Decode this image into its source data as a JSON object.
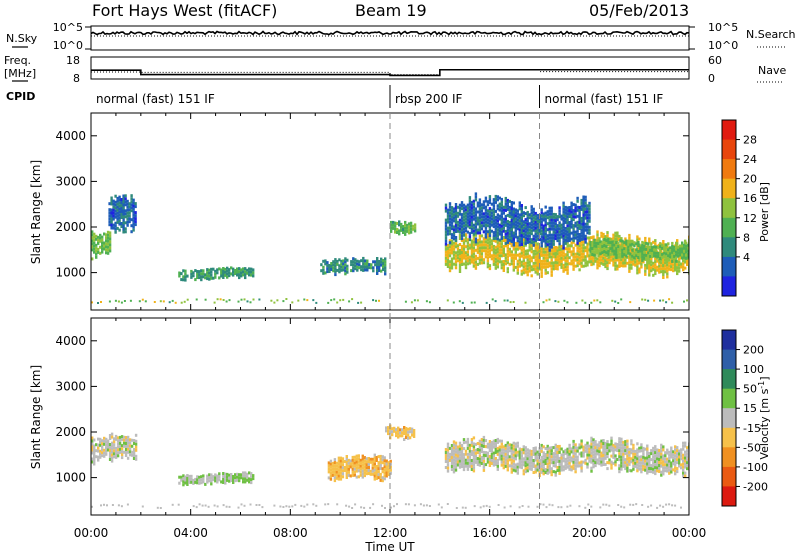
{
  "header": {
    "station": "Fort Hays West (fitACF)",
    "beam": "Beam 19",
    "date": "05/Feb/2013"
  },
  "noise_panel": {
    "left_label": "N.Sky",
    "right_label": "N.Search",
    "left_ticks": [
      "10^5",
      "10^0"
    ],
    "right_ticks": [
      "10^5",
      "10^0"
    ]
  },
  "freq_panel": {
    "left_label_line1": "Freq.",
    "left_label_line2": "[MHz]",
    "right_label": "Nave",
    "left_ticks": [
      "18",
      "8"
    ],
    "right_ticks": [
      "60",
      "0"
    ],
    "freq_steps": [
      {
        "t": 0,
        "f": 12.0
      },
      {
        "t": 2.0,
        "f": 10.0
      },
      {
        "t": 12.0,
        "f": 9.6
      },
      {
        "t": 14.0,
        "f": 12.2
      },
      {
        "t": 24.0,
        "f": 12.2
      }
    ],
    "nave_steps": [
      {
        "t": 0,
        "nave": 19
      },
      {
        "t": 2.0,
        "nave": 18
      },
      {
        "t": 12.0,
        "nave": 12
      },
      {
        "t": 14.0,
        "nave": 26
      },
      {
        "t": 18.0,
        "nave": 20
      },
      {
        "t": 24.0,
        "nave": 20
      }
    ]
  },
  "cpid": {
    "label": "CPID",
    "modes": [
      {
        "start": 0,
        "end": 12,
        "text": "normal (fast) 151 IF"
      },
      {
        "start": 12,
        "end": 18,
        "text": "rbsp 200 IF"
      },
      {
        "start": 18,
        "end": 24,
        "text": "normal (fast) 151 IF"
      }
    ]
  },
  "xaxis": {
    "label": "Time UT",
    "ticks": [
      "00:00",
      "04:00",
      "08:00",
      "12:00",
      "16:00",
      "20:00",
      "00:00"
    ]
  },
  "power_colorbar": {
    "label": "Power [dB]",
    "ticks": [
      "4",
      "8",
      "12",
      "16",
      "20",
      "24",
      "28"
    ],
    "colors": [
      "#1f24e0",
      "#1e5db8",
      "#2f8a7c",
      "#4fb052",
      "#8fc23e",
      "#f0b21a",
      "#f07a0f",
      "#e8450c",
      "#e01a10"
    ]
  },
  "velocity_colorbar": {
    "label": "Velocity [m s",
    "label_sup": "-1",
    "label_end": "]",
    "ticks": [
      "200",
      "100",
      "50",
      "15",
      "-15",
      "-50",
      "-100",
      "-200"
    ],
    "colors": [
      "#1f2f9e",
      "#2f5fa8",
      "#2f8a5a",
      "#6fc043",
      "#bcbcbc",
      "#f6c14a",
      "#f09020",
      "#ea5a12",
      "#dc1a10"
    ]
  },
  "chart_data": [
    {
      "type": "heatmap",
      "title": "",
      "xlabel": "Time UT",
      "ylabel": "Slant Range [km]",
      "xlim": [
        0,
        24
      ],
      "ylim": [
        180,
        4500
      ],
      "yticks": [
        1000,
        2000,
        3000,
        4000
      ],
      "colorbar": "Power [dB]",
      "clim": [
        0,
        32
      ],
      "regions": [
        {
          "t0": 0.0,
          "t1": 0.8,
          "r0": 1300,
          "r1": 1900,
          "value": 14
        },
        {
          "t0": 0.7,
          "t1": 1.8,
          "r0": 1800,
          "r1": 2600,
          "value": 6
        },
        {
          "t0": 3.5,
          "t1": 6.5,
          "r0": 850,
          "r1": 1100,
          "value": 10
        },
        {
          "t0": 9.2,
          "t1": 11.8,
          "r0": 950,
          "r1": 1300,
          "value": 9
        },
        {
          "t0": 12.0,
          "t1": 13.0,
          "r0": 1850,
          "r1": 2150,
          "value": 13
        },
        {
          "t0": 14.2,
          "t1": 24.0,
          "r0": 1000,
          "r1": 1800,
          "value": 18
        },
        {
          "t0": 14.2,
          "t1": 20.0,
          "r0": 1600,
          "r1": 2600,
          "value": 6
        },
        {
          "t0": 20.0,
          "t1": 24.0,
          "r0": 1300,
          "r1": 1700,
          "value": 14
        }
      ]
    },
    {
      "type": "heatmap",
      "title": "",
      "xlabel": "Time UT",
      "ylabel": "Slant Range [km]",
      "xlim": [
        0,
        24
      ],
      "ylim": [
        180,
        4500
      ],
      "yticks": [
        1000,
        2000,
        3000,
        4000
      ],
      "colorbar": "Velocity [m s-1]",
      "clim": [
        -250,
        250
      ],
      "regions": [
        {
          "t0": 0.0,
          "t1": 1.8,
          "r0": 1300,
          "r1": 1900,
          "value": 0
        },
        {
          "t0": 3.5,
          "t1": 6.5,
          "r0": 850,
          "r1": 1100,
          "value": 25
        },
        {
          "t0": 9.5,
          "t1": 12.0,
          "r0": 900,
          "r1": 1450,
          "value": -60
        },
        {
          "t0": 11.8,
          "t1": 13.0,
          "r0": 1850,
          "r1": 2150,
          "value": -40
        },
        {
          "t0": 14.2,
          "t1": 24.0,
          "r0": 1100,
          "r1": 1800,
          "value": 0
        }
      ]
    }
  ]
}
